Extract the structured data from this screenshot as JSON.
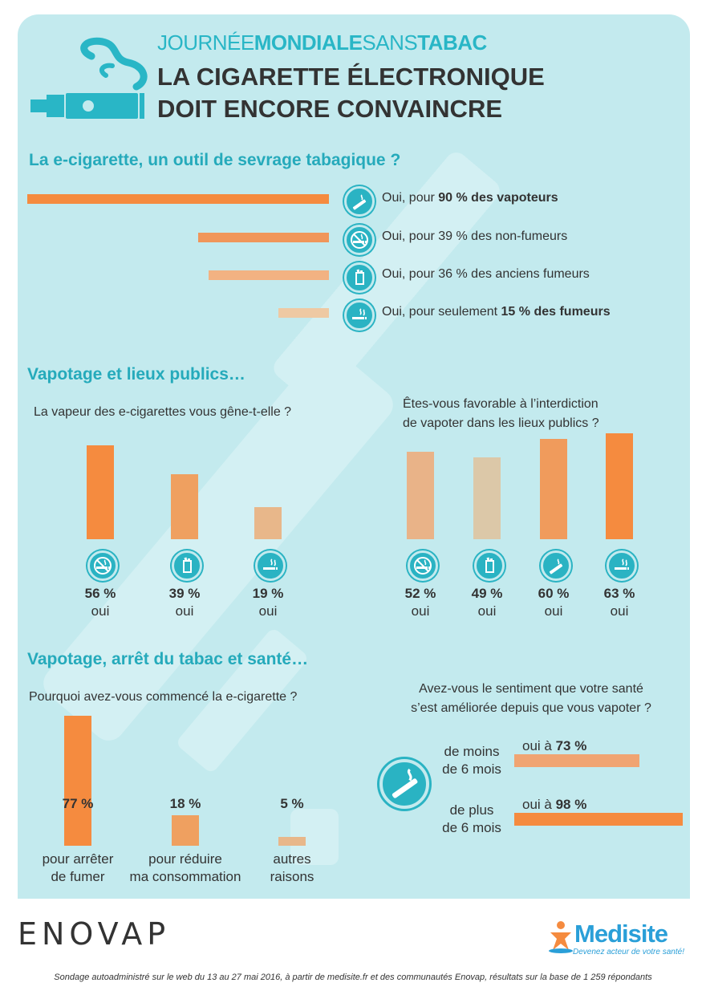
{
  "header": {
    "title_line1_a": "JOURNÉE",
    "title_line1_b": "MONDIALE",
    "title_line1_c": "SANS",
    "title_line1_d": "TABAC",
    "title_line2": "LA CIGARETTE ÉLECTRONIQUE",
    "title_line3": "DOIT ENCORE CONVAINCRE"
  },
  "colors": {
    "panel": "#c3eaee",
    "accent": "#29b6c6",
    "orange": "#f58b3f",
    "orange_mid": "#eea066",
    "orange_light": "#e8b98e",
    "beige": "#dcc8a8"
  },
  "section1": {
    "title": "La e-cigarette, un outil de sevrage tabagique ?",
    "items": [
      {
        "pre": "Oui, pour ",
        "bold": "90 % des vapoteurs",
        "post": "",
        "icon": "e-cigarette-icon",
        "color": "#f58b3f"
      },
      {
        "pre": "Oui, pour 39 % des non-fumeurs",
        "bold": "",
        "post": "",
        "icon": "no-smoking-icon",
        "color": "#f0965a"
      },
      {
        "pre": "Oui, pour 36 % des anciens fumeurs",
        "bold": "",
        "post": "",
        "icon": "cigarette-pack-icon",
        "color": "#f2b282"
      },
      {
        "pre": "Oui, pour seulement ",
        "bold": "15 % des fumeurs",
        "post": "",
        "icon": "smoking-icon",
        "color": "#eec9a3"
      }
    ]
  },
  "section2": {
    "title": "Vapotage et lieux publics…",
    "q_left": "La vapeur des e-cigarettes vous gêne-t-elle ?",
    "q_right_1": "Êtes-vous favorable à l’interdiction",
    "q_right_2": "de vapoter dans les lieux publics ?",
    "left_bars": [
      {
        "pct": "56 %",
        "sub": "oui",
        "icon": "no-smoking-icon",
        "color": "#f58b3f"
      },
      {
        "pct": "39 %",
        "sub": "oui",
        "icon": "cigarette-pack-icon",
        "color": "#efa060"
      },
      {
        "pct": "19 %",
        "sub": "oui",
        "icon": "smoking-icon",
        "color": "#e8b78a"
      }
    ],
    "right_bars": [
      {
        "pct": "52 %",
        "sub": "oui",
        "icon": "no-smoking-icon",
        "color": "#e9b388"
      },
      {
        "pct": "49 %",
        "sub": "oui",
        "icon": "cigarette-pack-icon",
        "color": "#dcc8a8"
      },
      {
        "pct": "60 %",
        "sub": "oui",
        "icon": "e-cigarette-icon",
        "color": "#f09b5c"
      },
      {
        "pct": "63 %",
        "sub": "oui",
        "icon": "smoking-icon",
        "color": "#f58b3f"
      }
    ]
  },
  "section3": {
    "title": "Vapotage, arrêt du tabac et santé…",
    "q_left": "Pourquoi avez-vous commencé la e-cigarette ?",
    "q_right_1": "Avez-vous le sentiment que votre santé",
    "q_right_2": "s’est améliorée depuis que vous vapoter ?",
    "reasons": [
      {
        "pct": "77 %",
        "cap1": "pour arrêter",
        "cap2": "de fumer",
        "color": "#f58b3f"
      },
      {
        "pct": "18 %",
        "cap1": "pour réduire",
        "cap2": "ma consommation",
        "color": "#efa060"
      },
      {
        "pct": "5 %",
        "cap1": "autres",
        "cap2": "raisons",
        "color": "#e8b78a"
      }
    ],
    "health": [
      {
        "label1": "de moins",
        "label2": "de 6 mois",
        "pre": "oui à ",
        "bold": "73 %",
        "color": "#f0a472"
      },
      {
        "label1": "de plus",
        "label2": "de 6 mois",
        "pre": "oui à ",
        "bold": "98 %",
        "color": "#f58b3f"
      }
    ]
  },
  "chart_data": [
    {
      "type": "bar",
      "title": "La e-cigarette, un outil de sevrage tabagique ?",
      "categories": [
        "vapoteurs",
        "non-fumeurs",
        "anciens fumeurs",
        "fumeurs"
      ],
      "values": [
        90,
        39,
        36,
        15
      ],
      "ylim": [
        0,
        100
      ]
    },
    {
      "type": "bar",
      "title": "La vapeur des e-cigarettes vous gêne-t-elle ?",
      "categories": [
        "non-fumeurs",
        "anciens fumeurs",
        "fumeurs"
      ],
      "values": [
        56,
        39,
        19
      ],
      "ylim": [
        0,
        100
      ]
    },
    {
      "type": "bar",
      "title": "Êtes-vous favorable à l’interdiction de vapoter dans les lieux publics ?",
      "categories": [
        "non-fumeurs",
        "anciens fumeurs",
        "vapoteurs",
        "fumeurs"
      ],
      "values": [
        52,
        49,
        60,
        63
      ],
      "ylim": [
        0,
        100
      ]
    },
    {
      "type": "bar",
      "title": "Pourquoi avez-vous commencé la e-cigarette ?",
      "categories": [
        "pour arrêter de fumer",
        "pour réduire ma consommation",
        "autres raisons"
      ],
      "values": [
        77,
        18,
        5
      ],
      "ylim": [
        0,
        100
      ]
    },
    {
      "type": "bar",
      "title": "Avez-vous le sentiment que votre santé s’est améliorée depuis que vous vapoter ?",
      "categories": [
        "de moins de 6 mois",
        "de plus de 6 mois"
      ],
      "values": [
        73,
        98
      ],
      "ylim": [
        0,
        100
      ]
    }
  ],
  "footer": {
    "enovap": "ENOVAP",
    "medisite": "Medisite",
    "medisite_tag": "Devenez acteur de votre santé!",
    "note": "Sondage autoadministré sur le web du 13 au 27 mai 2016, à partir de medisite.fr et des communautés Enovap, résultats sur la base de 1 259 répondants"
  }
}
